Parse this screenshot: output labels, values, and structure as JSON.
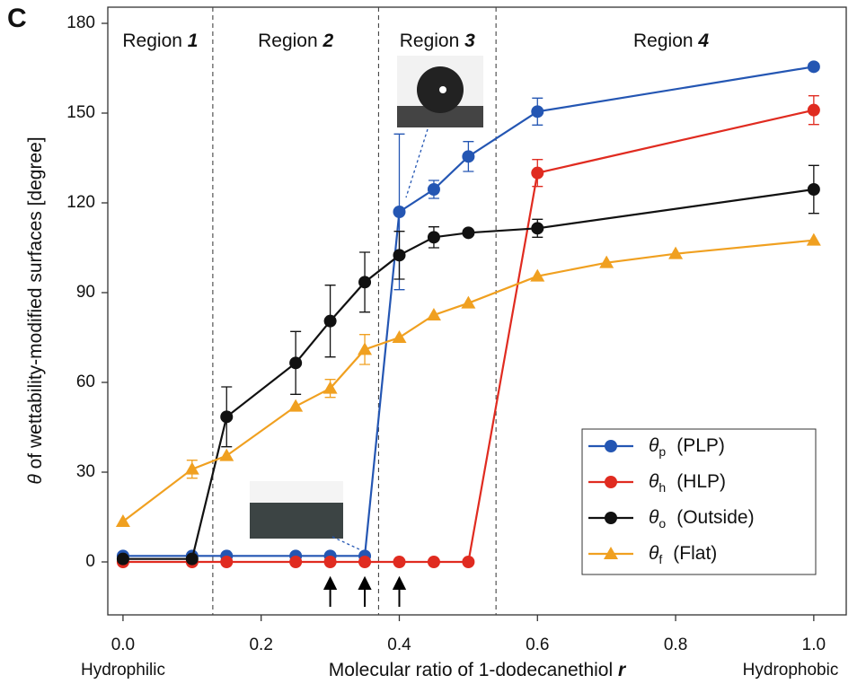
{
  "chart_data": {
    "type": "line",
    "panel_label": "C",
    "y_label_symbol": "θ",
    "y_label": "of wettability-modified surfaces [degree]",
    "x_label": "Molecular ratio of 1-dodecanethiol",
    "x_label_symbol": "r",
    "x_left_note": "Hydrophilic",
    "x_right_note": "Hydrophobic",
    "regions": [
      {
        "text": "Region",
        "number": "1"
      },
      {
        "text": "Region",
        "number": "2"
      },
      {
        "text": "Region",
        "number": "3"
      },
      {
        "text": "Region",
        "number": "4"
      }
    ],
    "region_bounds": [
      0.13,
      0.37,
      0.54
    ],
    "arrows": [
      0.3,
      0.35,
      0.4
    ],
    "xlim": [
      -0.022,
      1.047
    ],
    "ylim": [
      -17.7,
      185.4
    ],
    "xticks": [
      {
        "value": 0,
        "label": "0.0"
      },
      0.2,
      0.4,
      0.6,
      0.8,
      {
        "value": 1,
        "label": "1.0"
      }
    ],
    "yticks": [
      0,
      30,
      60,
      90,
      120,
      150,
      180
    ],
    "legend_position": "lower right",
    "series": [
      {
        "symbol": "θ",
        "subscript": "p",
        "name": "(PLP)",
        "color": "#2456b3",
        "marker": "circle",
        "x": [
          0,
          0.1,
          0.15,
          0.25,
          0.3,
          0.35,
          0.4,
          0.45,
          0.5,
          0.6,
          1.0
        ],
        "values": [
          2,
          2,
          2,
          2,
          2,
          2,
          117,
          124.5,
          135.5,
          150.5,
          165.5
        ],
        "errors": [
          0,
          0,
          0,
          0,
          0,
          0,
          26,
          3,
          5,
          4.5,
          1
        ]
      },
      {
        "symbol": "θ",
        "subscript": "h",
        "name": "(HLP)",
        "color": "#e02b20",
        "marker": "circle",
        "x": [
          0,
          0.1,
          0.15,
          0.25,
          0.3,
          0.35,
          0.4,
          0.45,
          0.5,
          0.6,
          1.0
        ],
        "values": [
          0,
          0,
          0,
          0,
          0,
          0,
          0,
          0,
          0,
          130,
          151
        ],
        "errors": [
          0,
          0,
          0,
          0,
          0,
          0,
          0,
          0,
          0,
          4.5,
          4.8
        ]
      },
      {
        "symbol": "θ",
        "subscript": "o",
        "name": "(Outside)",
        "color": "#111111",
        "marker": "circle",
        "x": [
          0,
          0.1,
          0.15,
          0.25,
          0.3,
          0.35,
          0.4,
          0.45,
          0.5,
          0.6,
          1.0
        ],
        "values": [
          1,
          1,
          48.5,
          66.5,
          80.5,
          93.5,
          102.5,
          108.5,
          110,
          111.5,
          124.5
        ],
        "errors": [
          0,
          0,
          10,
          10.5,
          12,
          10,
          8,
          3.5,
          0,
          3,
          8
        ]
      },
      {
        "symbol": "θ",
        "subscript": "f",
        "name": "(Flat)",
        "color": "#f0a020",
        "marker": "triangle",
        "x": [
          0,
          0.1,
          0.15,
          0.25,
          0.3,
          0.35,
          0.4,
          0.45,
          0.5,
          0.6,
          0.7,
          0.8,
          1.0
        ],
        "values": [
          13.5,
          31,
          35.5,
          52,
          58,
          71,
          75,
          82.5,
          86.5,
          95.5,
          100,
          103,
          107.5
        ],
        "errors": [
          0,
          3,
          0,
          0,
          3,
          5,
          0,
          0,
          0,
          0,
          0,
          0,
          0
        ]
      }
    ]
  }
}
